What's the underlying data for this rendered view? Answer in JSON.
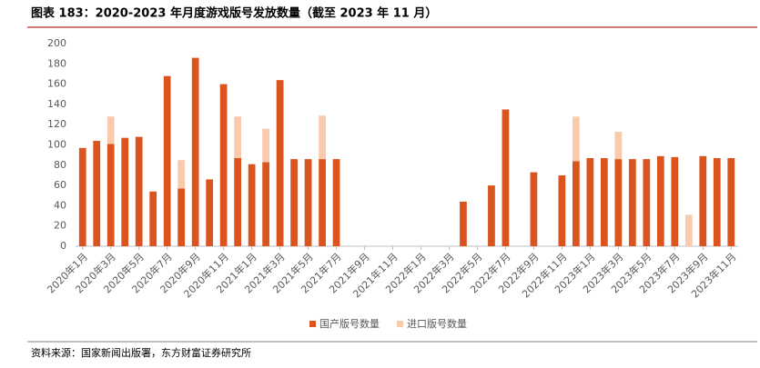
{
  "chart_data": {
    "type": "stacked_bar",
    "title": "图表 183：2020-2023 年月度游戏版号发放数量（截至 2023 年 11 月）",
    "source": "资料来源：国家新闻出版署，东方财富证券研究所",
    "categories": [
      "2020年1月",
      null,
      "2020年3月",
      null,
      "2020年5月",
      null,
      "2020年7月",
      null,
      "2020年9月",
      null,
      "2020年11月",
      null,
      "2021年1月",
      null,
      "2021年3月",
      null,
      "2021年5月",
      null,
      "2021年7月",
      null,
      "2021年9月",
      null,
      "2021年11月",
      null,
      "2022年1月",
      null,
      "2022年3月",
      null,
      "2022年5月",
      null,
      "2022年7月",
      null,
      "2022年9月",
      null,
      "2022年11月",
      null,
      "2023年1月",
      null,
      "2023年3月",
      null,
      "2023年5月",
      null,
      "2023年7月",
      null,
      "2023年9月",
      null,
      "2023年11月"
    ],
    "series": [
      {
        "name": "国产版号数量",
        "color": "#d9541e",
        "values": [
          97,
          104,
          101,
          107,
          108,
          54,
          168,
          57,
          186,
          66,
          160,
          87,
          81,
          83,
          164,
          86,
          86,
          86,
          86,
          0,
          0,
          0,
          0,
          0,
          0,
          0,
          0,
          44,
          0,
          60,
          135,
          0,
          73,
          0,
          70,
          84,
          87,
          87,
          86,
          86,
          86,
          89,
          88,
          0,
          89,
          87,
          87
        ]
      },
      {
        "name": "进口版号数量",
        "color": "#f8cbad",
        "values": [
          0,
          0,
          27,
          0,
          0,
          0,
          0,
          28,
          0,
          0,
          0,
          41,
          0,
          33,
          0,
          0,
          0,
          43,
          0,
          0,
          0,
          0,
          0,
          0,
          0,
          0,
          0,
          0,
          0,
          0,
          0,
          0,
          0,
          0,
          0,
          44,
          0,
          0,
          27,
          0,
          0,
          0,
          0,
          31,
          0,
          0,
          0
        ]
      }
    ],
    "ylim": [
      0,
      200
    ],
    "yticks": [
      0,
      20,
      40,
      60,
      80,
      100,
      120,
      140,
      160,
      180,
      200
    ]
  }
}
